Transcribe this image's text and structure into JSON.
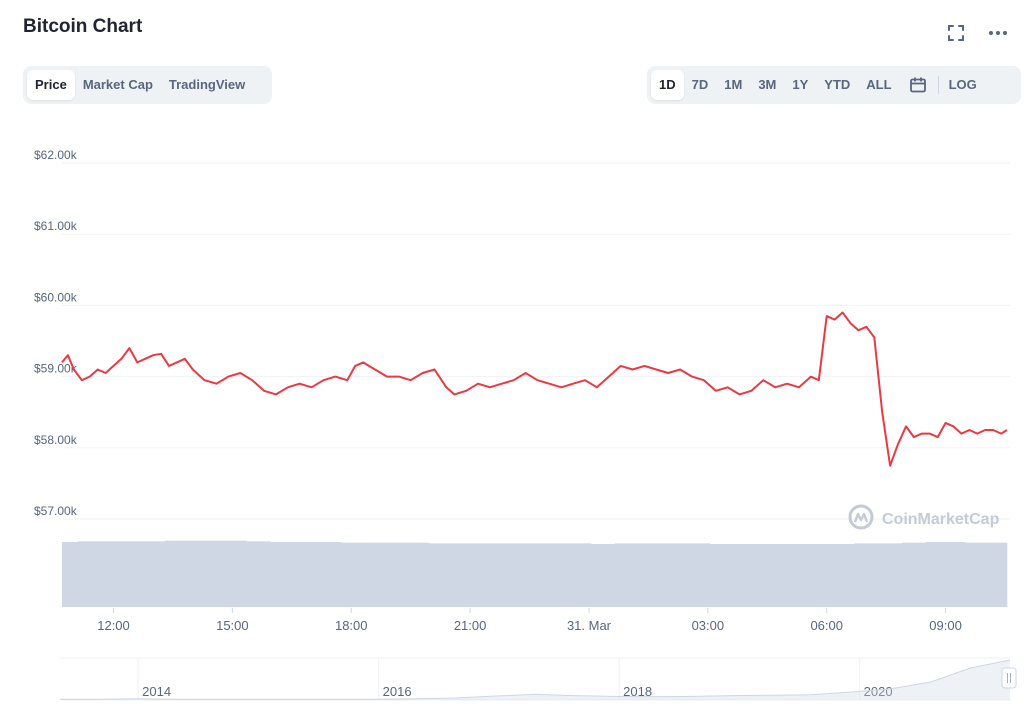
{
  "header": {
    "title": "Bitcoin Chart"
  },
  "icons": {
    "expand": "expand-icon",
    "more": "more-icon",
    "calendar": "calendar-icon",
    "logo": "coinmarketcap-logo-icon"
  },
  "left_tabs": [
    {
      "label": "Price",
      "active": true
    },
    {
      "label": "Market Cap",
      "active": false
    },
    {
      "label": "TradingView",
      "active": false
    }
  ],
  "ranges": [
    {
      "label": "1D",
      "active": true
    },
    {
      "label": "7D",
      "active": false
    },
    {
      "label": "1M",
      "active": false
    },
    {
      "label": "3M",
      "active": false
    },
    {
      "label": "1Y",
      "active": false
    },
    {
      "label": "YTD",
      "active": false
    },
    {
      "label": "ALL",
      "active": false
    }
  ],
  "log_label": "LOG",
  "watermark": "CoinMarketCap",
  "colors": {
    "line": "#ea3943",
    "volume": "#cfd6e4",
    "text": "#58667e",
    "grid": "#eff2f5"
  },
  "chart_data": {
    "type": "line",
    "ylim": [
      56500,
      62500
    ],
    "y_ticks": [
      57000,
      58000,
      59000,
      60000,
      61000,
      62000
    ],
    "y_tick_labels": [
      "$57.00k",
      "$58.00k",
      "$59.00k",
      "$60.00k",
      "$61.00k",
      "$62.00k"
    ],
    "x_ticks": [
      "12:00",
      "15:00",
      "18:00",
      "21:00",
      "31. Mar",
      "03:00",
      "06:00",
      "09:00"
    ],
    "x_tick_pos_hours": [
      12,
      15,
      18,
      21,
      24,
      27,
      30,
      33
    ],
    "x_range_hours": [
      10.7,
      34.55
    ],
    "series": [
      {
        "x_hours": [
          10.7,
          10.85,
          11.0,
          11.2,
          11.4,
          11.6,
          11.8,
          12.0,
          12.2,
          12.4,
          12.6,
          12.8,
          13.0,
          13.2,
          13.4,
          13.6,
          13.8,
          14.0,
          14.3,
          14.6,
          14.9,
          15.2,
          15.5,
          15.8,
          16.1,
          16.4,
          16.7,
          17.0,
          17.3,
          17.6,
          17.9,
          18.1,
          18.3,
          18.6,
          18.9,
          19.2,
          19.5,
          19.8,
          20.1,
          20.4,
          20.6,
          20.9,
          21.2,
          21.5,
          21.8,
          22.1,
          22.4,
          22.7,
          23.0,
          23.3,
          23.6,
          23.9,
          24.2,
          24.5,
          24.8,
          25.1,
          25.4,
          25.7,
          26.0,
          26.3,
          26.6,
          26.9,
          27.2,
          27.5,
          27.8,
          28.1,
          28.4,
          28.7,
          29.0,
          29.3,
          29.6,
          29.8,
          30.0,
          30.2,
          30.4,
          30.6,
          30.8,
          31.0,
          31.2,
          31.4,
          31.6,
          31.8,
          32.0,
          32.2,
          32.4,
          32.6,
          32.8,
          33.0,
          33.2,
          33.4,
          33.6,
          33.8,
          34.0,
          34.2,
          34.4,
          34.55
        ],
        "values": [
          59200,
          59300,
          59100,
          58950,
          59000,
          59100,
          59050,
          59150,
          59250,
          59400,
          59200,
          59250,
          59300,
          59320,
          59150,
          59200,
          59250,
          59100,
          58950,
          58900,
          59000,
          59050,
          58950,
          58800,
          58750,
          58850,
          58900,
          58850,
          58950,
          59000,
          58950,
          59150,
          59200,
          59100,
          59000,
          59000,
          58950,
          59050,
          59100,
          58850,
          58750,
          58800,
          58900,
          58850,
          58900,
          58950,
          59050,
          58950,
          58900,
          58850,
          58900,
          58950,
          58850,
          59000,
          59150,
          59100,
          59150,
          59100,
          59050,
          59100,
          59000,
          58950,
          58800,
          58850,
          58750,
          58800,
          58950,
          58850,
          58900,
          58850,
          59000,
          58950,
          59850,
          59800,
          59900,
          59750,
          59650,
          59700,
          59550,
          58500,
          57750,
          58050,
          58300,
          58150,
          58200,
          58200,
          58150,
          58350,
          58300,
          58200,
          58250,
          58200,
          58250,
          58250,
          58200,
          58250
        ],
        "volume": [
          0.97,
          0.97,
          0.97,
          0.98,
          0.98,
          0.98,
          0.98,
          0.98,
          0.98,
          0.98,
          0.98,
          0.98,
          0.98,
          0.98,
          0.99,
          0.99,
          0.99,
          0.99,
          0.99,
          0.99,
          0.99,
          0.99,
          0.98,
          0.98,
          0.97,
          0.97,
          0.97,
          0.97,
          0.97,
          0.97,
          0.96,
          0.96,
          0.96,
          0.96,
          0.96,
          0.96,
          0.96,
          0.96,
          0.95,
          0.95,
          0.95,
          0.95,
          0.95,
          0.95,
          0.95,
          0.95,
          0.95,
          0.95,
          0.95,
          0.95,
          0.95,
          0.95,
          0.94,
          0.94,
          0.95,
          0.95,
          0.95,
          0.95,
          0.95,
          0.95,
          0.95,
          0.95,
          0.94,
          0.94,
          0.94,
          0.94,
          0.94,
          0.94,
          0.94,
          0.94,
          0.94,
          0.94,
          0.94,
          0.94,
          0.94,
          0.94,
          0.95,
          0.95,
          0.95,
          0.95,
          0.95,
          0.95,
          0.96,
          0.96,
          0.96,
          0.97,
          0.97,
          0.97,
          0.97,
          0.97,
          0.96,
          0.96,
          0.96,
          0.96,
          0.96,
          0.96
        ]
      }
    ],
    "navigator": {
      "year_labels": [
        "2014",
        "2016",
        "2018",
        "2020"
      ],
      "year_pos": [
        2014,
        2016,
        2018,
        2020
      ],
      "x_range": [
        2013.35,
        2021.25
      ],
      "profile": [
        0.02,
        0.02,
        0.03,
        0.02,
        0.02,
        0.02,
        0.02,
        0.02,
        0.02,
        0.03,
        0.05,
        0.1,
        0.14,
        0.11,
        0.09,
        0.08,
        0.09,
        0.11,
        0.12,
        0.13,
        0.2,
        0.28,
        0.45,
        0.8,
        1.0
      ]
    }
  }
}
